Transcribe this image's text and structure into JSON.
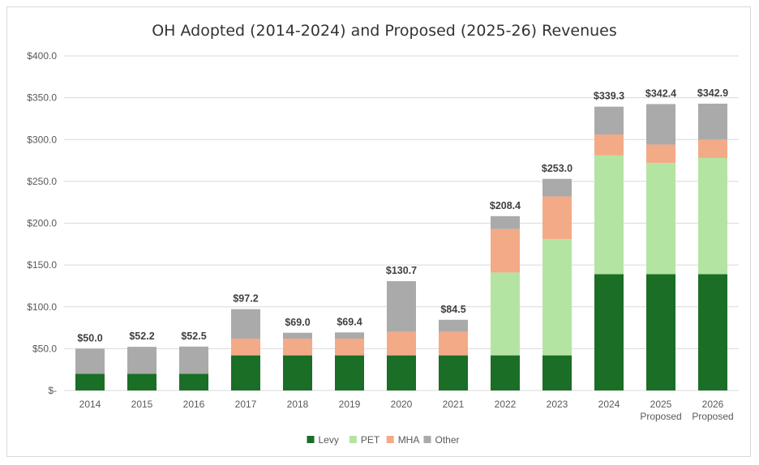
{
  "chart_data": {
    "type": "bar",
    "stacked": true,
    "title": "OH Adopted (2014-2024) and Proposed (2025-26) Revenues",
    "xlabel": "",
    "ylabel": "",
    "ylim": [
      0,
      400
    ],
    "yticks": [
      0,
      50,
      100,
      150,
      200,
      250,
      300,
      350,
      400
    ],
    "ytick_labels": [
      "$-",
      "$50.0",
      "$100.0",
      "$150.0",
      "$200.0",
      "$250.0",
      "$300.0",
      "$350.0",
      "$400.0"
    ],
    "grid": true,
    "legend_position": "bottom",
    "categories": [
      [
        "2014"
      ],
      [
        "2015"
      ],
      [
        "2016"
      ],
      [
        "2017"
      ],
      [
        "2018"
      ],
      [
        "2019"
      ],
      [
        "2020"
      ],
      [
        "2021"
      ],
      [
        "2022"
      ],
      [
        "2023"
      ],
      [
        "2024"
      ],
      [
        "2025",
        "Proposed"
      ],
      [
        "2026",
        "Proposed"
      ]
    ],
    "series": [
      {
        "name": "Levy",
        "color": "#1a6e26",
        "values": [
          20,
          20,
          20,
          42,
          42,
          42,
          42,
          42,
          42,
          42,
          139,
          139,
          139
        ]
      },
      {
        "name": "PET",
        "color": "#b4e4a2",
        "values": [
          0,
          0,
          0,
          0,
          0,
          0,
          0,
          0,
          99,
          139,
          142,
          133,
          139
        ]
      },
      {
        "name": "MHA",
        "color": "#f3aa86",
        "values": [
          0,
          0,
          0,
          20,
          20,
          20,
          28,
          28,
          52,
          51,
          25,
          22,
          22
        ]
      },
      {
        "name": "Other",
        "color": "#aaaaaa",
        "values": [
          30,
          32.2,
          32.5,
          35.2,
          7,
          7.4,
          60.7,
          14.5,
          15.4,
          21,
          33.3,
          48.4,
          42.9
        ]
      }
    ],
    "totals": [
      50.0,
      52.2,
      52.5,
      97.2,
      69.0,
      69.4,
      130.7,
      84.5,
      208.4,
      253.0,
      339.3,
      342.4,
      342.9
    ],
    "total_labels": [
      "$50.0",
      "$52.2",
      "$52.5",
      "$97.2",
      "$69.0",
      "$69.4",
      "$130.7",
      "$84.5",
      "$208.4",
      "$253.0",
      "$339.3",
      "$342.4",
      "$342.9"
    ]
  }
}
